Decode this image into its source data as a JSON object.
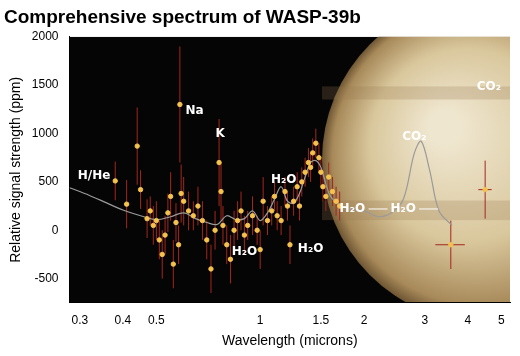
{
  "chart_data": {
    "type": "scatter",
    "title": "Comprehensive spectrum of WASP-39b",
    "x_label": "Wavelength (microns)",
    "y_label": "Relative signal strength (ppm)",
    "log": "x",
    "grid": false,
    "xlim": [
      0.28,
      5.3
    ],
    "xticks": [
      0.3,
      0.4,
      0.5,
      1,
      1.5,
      2,
      3,
      4,
      5
    ],
    "ylim": [
      -750,
      2000
    ],
    "yticks": [
      -500,
      0,
      500,
      1000,
      1500,
      2000
    ],
    "series": [
      {
        "type": "scatter",
        "color": "#f4c24f",
        "marker": "circle",
        "x": [
          0.38,
          0.41,
          0.44,
          0.45,
          0.47,
          0.48,
          0.49,
          0.5,
          0.51,
          0.52,
          0.53,
          0.54,
          0.55,
          0.56,
          0.57,
          0.58,
          0.585,
          0.59,
          0.6,
          0.62,
          0.64,
          0.66,
          0.68,
          0.7,
          0.72,
          0.74,
          0.76,
          0.77,
          0.78,
          0.8,
          0.82,
          0.84,
          0.86,
          0.88,
          0.9,
          0.92,
          0.95,
          0.98,
          1.0,
          1.02,
          1.05,
          1.08,
          1.1,
          1.12,
          1.15,
          1.18,
          1.2,
          1.22,
          1.25,
          1.28,
          1.3,
          1.32,
          1.35,
          1.38,
          1.4,
          1.42,
          1.45,
          1.48,
          1.5,
          1.52,
          1.55,
          1.58,
          1.62,
          1.66,
          1.7,
          3.57,
          4.49
        ],
        "values": [
          510,
          270,
          870,
          420,
          120,
          200,
          50,
          100,
          -100,
          -250,
          -50,
          180,
          350,
          -350,
          80,
          -150,
          1300,
          380,
          300,
          200,
          150,
          250,
          100,
          -100,
          -400,
          0,
          700,
          400,
          50,
          -150,
          -300,
          0,
          100,
          200,
          -50,
          50,
          150,
          0,
          -200,
          300,
          100,
          200,
          350,
          150,
          100,
          400,
          250,
          -150,
          300,
          450,
          250,
          500,
          600,
          700,
          650,
          800,
          900,
          750,
          600,
          450,
          350,
          550,
          400,
          300,
          250,
          -150,
          420
        ],
        "yerr": [
          200,
          250,
          400,
          200,
          200,
          150,
          200,
          200,
          200,
          250,
          200,
          200,
          250,
          250,
          200,
          200,
          600,
          300,
          250,
          200,
          150,
          200,
          200,
          200,
          250,
          200,
          450,
          300,
          200,
          200,
          250,
          200,
          200,
          200,
          200,
          150,
          200,
          150,
          200,
          250,
          150,
          150,
          150,
          150,
          150,
          150,
          150,
          200,
          150,
          150,
          150,
          150,
          150,
          150,
          150,
          150,
          150,
          150,
          150,
          150,
          150,
          150,
          150,
          150,
          150,
          250,
          300
        ],
        "xerr": [
          null,
          null,
          null,
          null,
          null,
          null,
          null,
          null,
          null,
          null,
          null,
          null,
          null,
          null,
          null,
          null,
          null,
          null,
          null,
          null,
          null,
          null,
          null,
          null,
          null,
          null,
          null,
          null,
          null,
          null,
          null,
          null,
          null,
          null,
          null,
          null,
          null,
          null,
          null,
          null,
          null,
          null,
          null,
          null,
          null,
          null,
          null,
          null,
          null,
          null,
          null,
          null,
          null,
          null,
          null,
          null,
          null,
          null,
          null,
          null,
          null,
          null,
          null,
          null,
          null,
          0.35,
          0.2
        ]
      },
      {
        "type": "line",
        "color": "#9a9a9a",
        "line_style": "solid",
        "x": [
          0.28,
          0.32,
          0.36,
          0.4,
          0.45,
          0.5,
          0.55,
          0.6,
          0.65,
          0.7,
          0.75,
          0.8,
          0.85,
          0.9,
          0.95,
          1.0,
          1.05,
          1.1,
          1.15,
          1.2,
          1.25,
          1.3,
          1.35,
          1.4,
          1.45,
          1.5,
          1.55,
          1.6,
          1.7,
          1.8,
          2.0,
          2.2,
          2.4,
          2.6,
          2.8,
          2.93,
          3.1,
          3.3,
          3.6
        ],
        "values": [
          440,
          360,
          280,
          210,
          150,
          110,
          140,
          180,
          120,
          80,
          60,
          150,
          110,
          120,
          200,
          100,
          180,
          320,
          450,
          300,
          280,
          380,
          550,
          700,
          720,
          650,
          480,
          350,
          260,
          220,
          200,
          140,
          180,
          320,
          800,
          920,
          620,
          200,
          50
        ]
      }
    ],
    "annotations": [
      {
        "text": "H/He",
        "x": 0.33,
        "y": 560
      },
      {
        "text": "Na",
        "x": 0.645,
        "y": 1230
      },
      {
        "text": "K",
        "x": 0.765,
        "y": 1000
      },
      {
        "text": "H₂O",
        "x": 1.17,
        "y": 520
      },
      {
        "text": "H₂O",
        "x": 0.9,
        "y": -220
      },
      {
        "text": "H₂O",
        "x": 1.4,
        "y": -190
      },
      {
        "text": "H₂O",
        "x": 1.85,
        "y": 220
      },
      {
        "text": "H₂O",
        "x": 2.6,
        "y": 220
      },
      {
        "text": "CO₂",
        "x": 2.8,
        "y": 970
      },
      {
        "text": "CO₂",
        "x": 4.6,
        "y": 1480
      }
    ]
  }
}
